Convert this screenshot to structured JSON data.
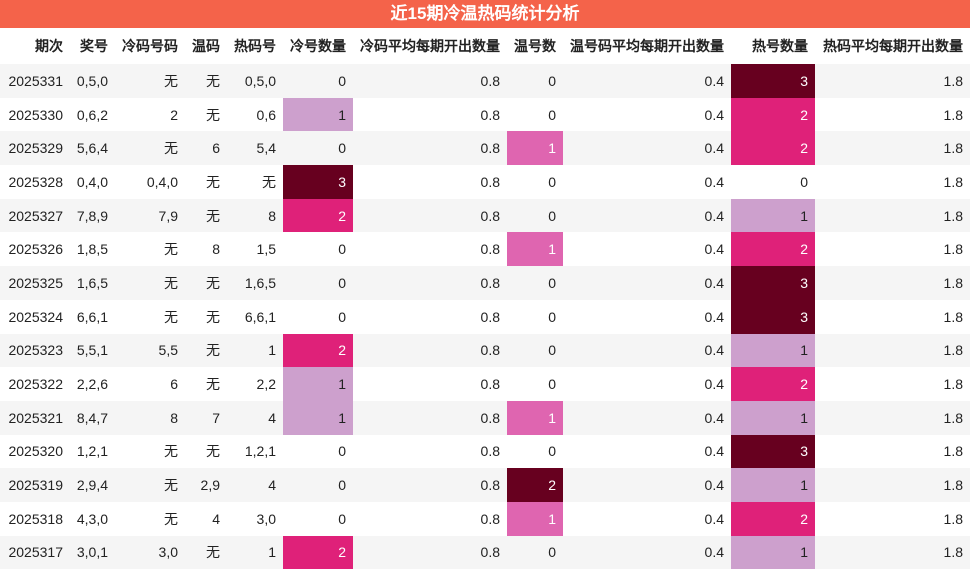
{
  "title": "近15期冷温热码统计分析",
  "table": {
    "headers": [
      "期次",
      "奖号",
      "冷码号码",
      "温码",
      "热码号",
      "冷号数量",
      "冷码平均每期开出数量",
      "温号数",
      "温号码平均每期开出数量",
      "热号数量",
      "热码平均每期开出数量"
    ],
    "rows": [
      [
        2025331,
        "0,5,0",
        "无",
        "无",
        "0,5,0",
        0,
        0.8,
        0,
        0.4,
        3,
        1.8
      ],
      [
        2025330,
        "0,6,2",
        "2",
        "无",
        "0,6",
        1,
        0.8,
        0,
        0.4,
        2,
        1.8
      ],
      [
        2025329,
        "5,6,4",
        "无",
        "6",
        "5,4",
        0,
        0.8,
        1,
        0.4,
        2,
        1.8
      ],
      [
        2025328,
        "0,4,0",
        "0,4,0",
        "无",
        "无",
        3,
        0.8,
        0,
        0.4,
        0,
        1.8
      ],
      [
        2025327,
        "7,8,9",
        "7,9",
        "无",
        "8",
        2,
        0.8,
        0,
        0.4,
        1,
        1.8
      ],
      [
        2025326,
        "1,8,5",
        "无",
        "8",
        "1,5",
        0,
        0.8,
        1,
        0.4,
        2,
        1.8
      ],
      [
        2025325,
        "1,6,5",
        "无",
        "无",
        "1,6,5",
        0,
        0.8,
        0,
        0.4,
        3,
        1.8
      ],
      [
        2025324,
        "6,6,1",
        "无",
        "无",
        "6,6,1",
        0,
        0.8,
        0,
        0.4,
        3,
        1.8
      ],
      [
        2025323,
        "5,5,1",
        "5,5",
        "无",
        "1",
        2,
        0.8,
        0,
        0.4,
        1,
        1.8
      ],
      [
        2025322,
        "2,2,6",
        "6",
        "无",
        "2,2",
        1,
        0.8,
        0,
        0.4,
        2,
        1.8
      ],
      [
        2025321,
        "8,4,7",
        "8",
        "7",
        "4",
        1,
        0.8,
        1,
        0.4,
        1,
        1.8
      ],
      [
        2025320,
        "1,2,1",
        "无",
        "无",
        "1,2,1",
        0,
        0.8,
        0,
        0.4,
        3,
        1.8
      ],
      [
        2025319,
        "2,9,4",
        "无",
        "2,9",
        "4",
        0,
        0.8,
        2,
        0.4,
        1,
        1.8
      ],
      [
        2025318,
        "4,3,0",
        "无",
        "4",
        "3,0",
        0,
        0.8,
        1,
        0.4,
        2,
        1.8
      ],
      [
        2025317,
        "3,0,1",
        "3,0",
        "无",
        "1",
        2,
        0.8,
        0,
        0.4,
        1,
        1.8
      ]
    ]
  }
}
